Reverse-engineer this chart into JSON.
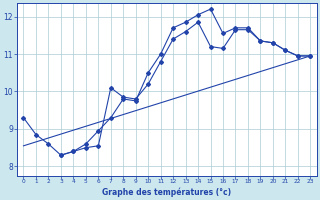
{
  "xlabel": "Graphe des températures (°c)",
  "background_color": "#cce8ee",
  "plot_bg_color": "#ffffff",
  "grid_color": "#aaccd4",
  "line_color": "#2244aa",
  "xlim": [
    -0.5,
    23.5
  ],
  "ylim": [
    7.75,
    12.35
  ],
  "xticks": [
    0,
    1,
    2,
    3,
    4,
    5,
    6,
    7,
    8,
    9,
    10,
    11,
    12,
    13,
    14,
    15,
    16,
    17,
    18,
    19,
    20,
    21,
    22,
    23
  ],
  "yticks": [
    8,
    9,
    10,
    11,
    12
  ],
  "line1_x": [
    0,
    1,
    2,
    3,
    4,
    5,
    6,
    7,
    8,
    9,
    10,
    11,
    12,
    13,
    14,
    15,
    16,
    17,
    18,
    19,
    20,
    21,
    22,
    23
  ],
  "line1_y": [
    9.3,
    8.85,
    8.6,
    8.3,
    8.4,
    8.6,
    8.95,
    9.3,
    9.8,
    9.75,
    10.5,
    11.0,
    11.7,
    11.85,
    12.05,
    12.2,
    11.55,
    11.7,
    11.7,
    11.35,
    11.3,
    11.1,
    10.95,
    10.95
  ],
  "line2_x": [
    3,
    4,
    5,
    6,
    7,
    8,
    9,
    10,
    11,
    12,
    13,
    14,
    15,
    16,
    17,
    18,
    19,
    20,
    21,
    22,
    23
  ],
  "line2_y": [
    8.3,
    8.4,
    8.5,
    8.55,
    10.1,
    9.85,
    9.8,
    10.2,
    10.8,
    11.4,
    11.6,
    11.85,
    11.2,
    11.15,
    11.65,
    11.65,
    11.35,
    11.3,
    11.1,
    10.95,
    10.95
  ],
  "line3_x": [
    0,
    23
  ],
  "line3_y": [
    8.55,
    10.95
  ]
}
